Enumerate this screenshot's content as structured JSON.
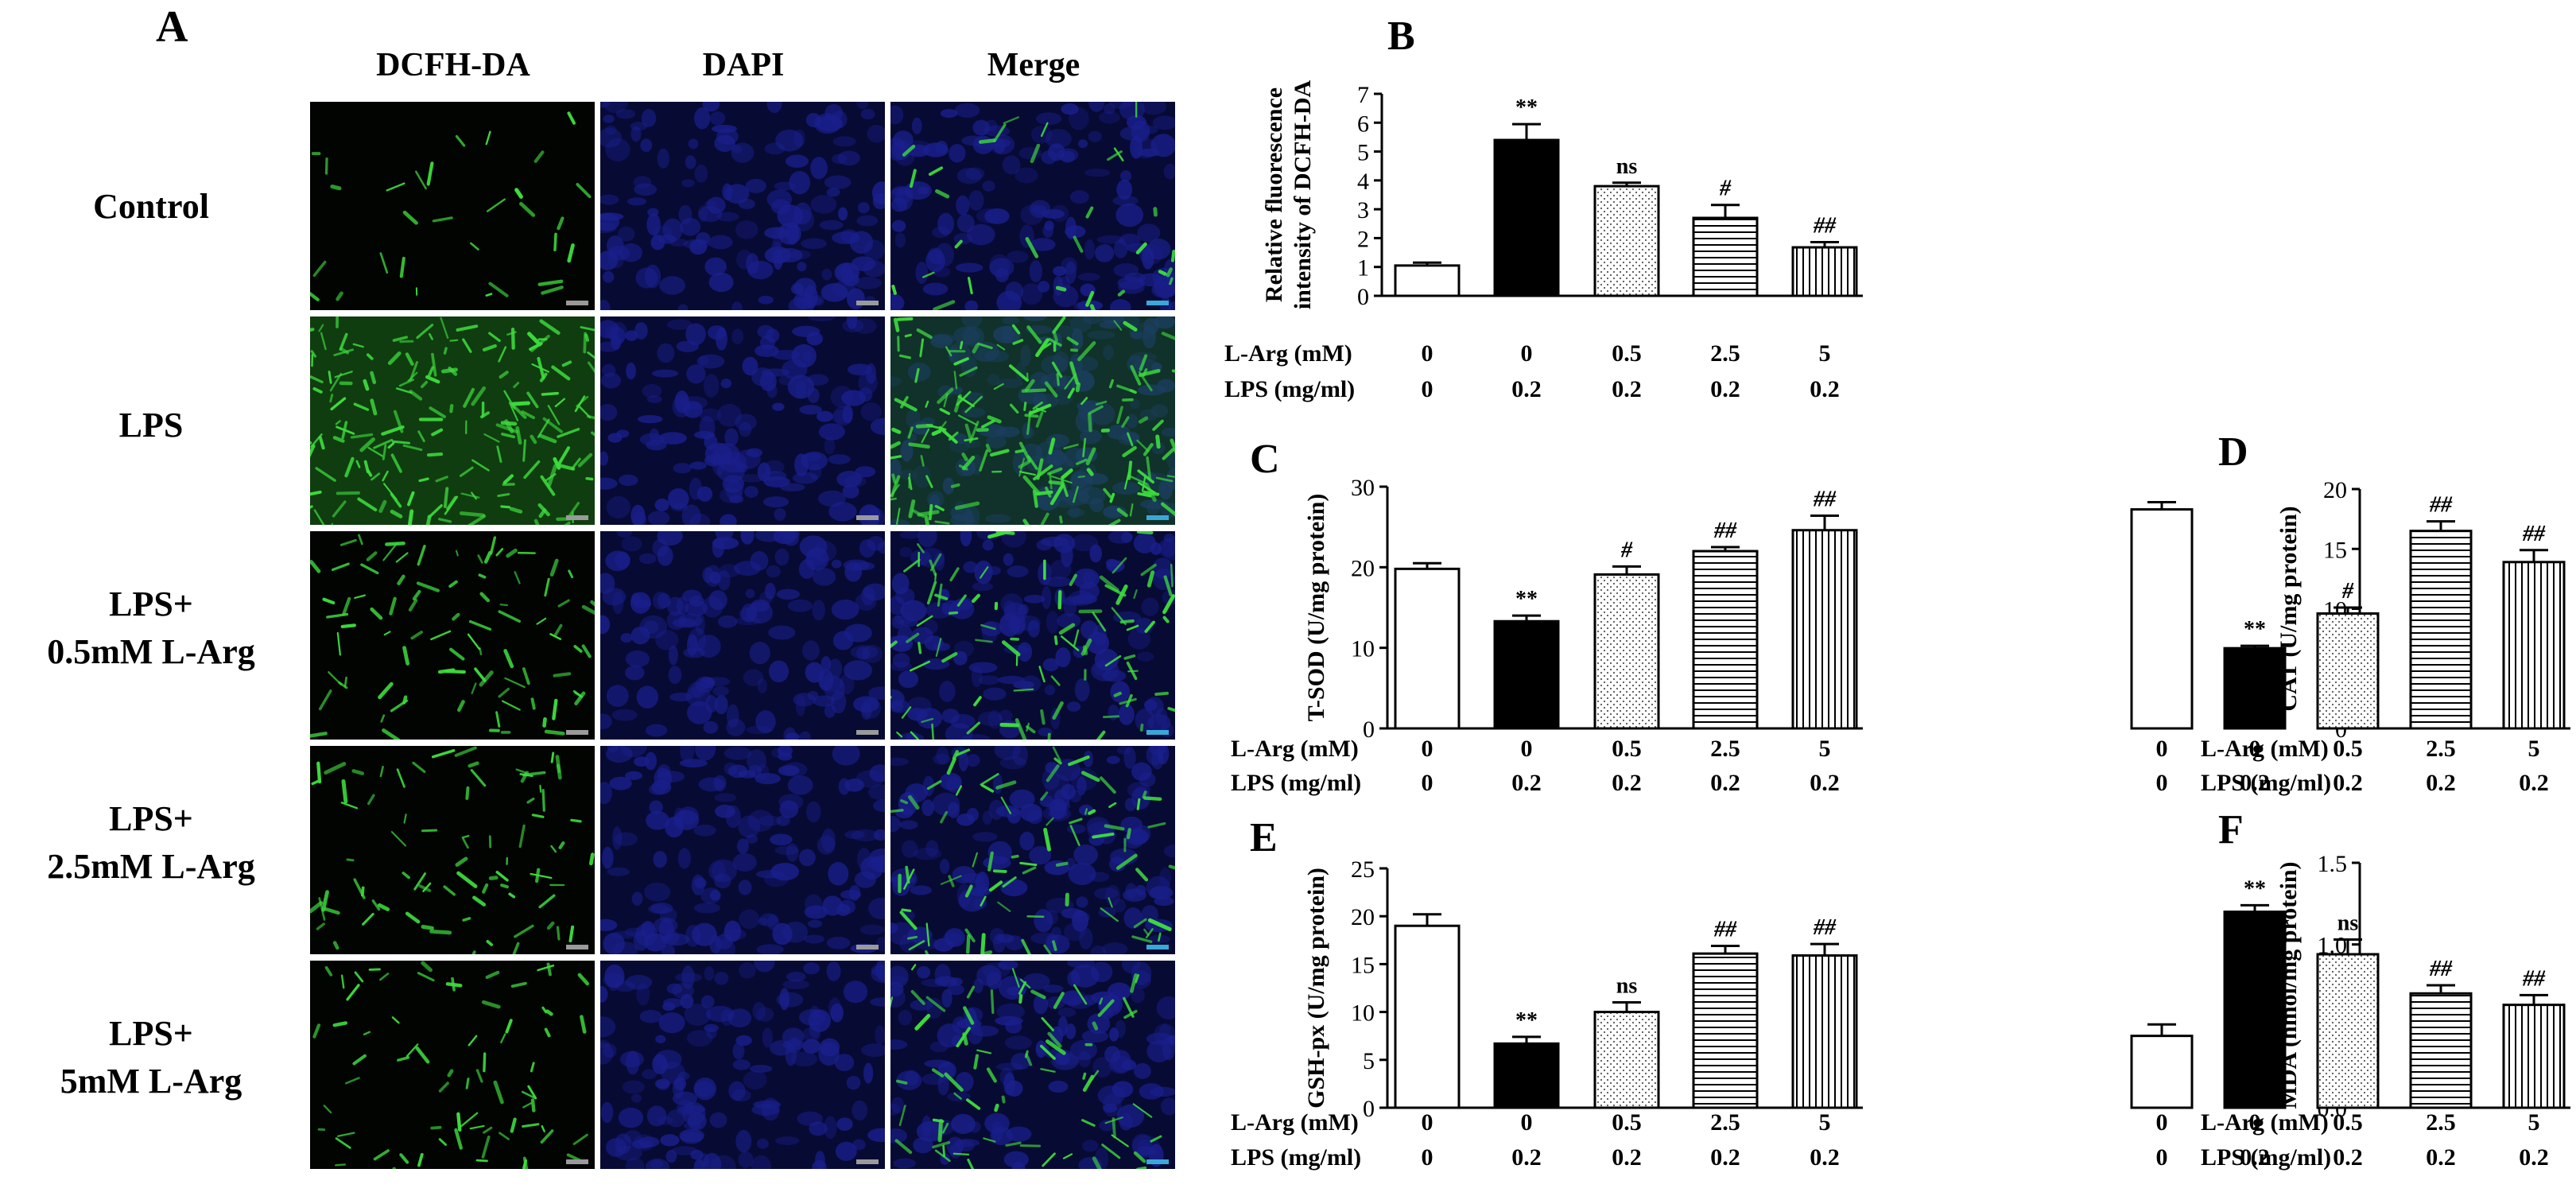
{
  "panel_a": {
    "letter": "A",
    "columns": [
      "DCFH-DA",
      "DAPI",
      "Merge"
    ],
    "rows": [
      [
        "Control"
      ],
      [
        "LPS"
      ],
      [
        "LPS+",
        "0.5mM L-Arg"
      ],
      [
        "LPS+",
        "2.5mM L-Arg"
      ],
      [
        "LPS+",
        "5mM L-Arg"
      ]
    ],
    "green_density": [
      0.12,
      1.0,
      0.45,
      0.4,
      0.35
    ],
    "colors": {
      "green": "#3ddc3d",
      "blue": "#1a1f8c",
      "background": "#000000"
    }
  },
  "chart_data": [
    {
      "panel": "B",
      "type": "bar",
      "ylabel": [
        "Relative fluorescence",
        "intensity of DCFH-DA"
      ],
      "ylim": [
        0,
        7
      ],
      "yticks": [
        0,
        1,
        2,
        3,
        4,
        5,
        6,
        7
      ],
      "values": [
        1.05,
        5.4,
        3.8,
        2.7,
        1.68
      ],
      "errors": [
        0.1,
        0.55,
        0.12,
        0.45,
        0.18
      ],
      "annotations": [
        "",
        "**",
        "ns",
        "#",
        "##"
      ],
      "row_labels": [
        "L-Arg (mM)",
        "LPS (mg/ml)"
      ],
      "rows": [
        [
          "0",
          "0",
          "0.5",
          "2.5",
          "5"
        ],
        [
          "0",
          "0.2",
          "0.2",
          "0.2",
          "0.2"
        ]
      ]
    },
    {
      "panel": "C",
      "type": "bar",
      "ylabel": [
        "T-SOD (U/mg protein)"
      ],
      "ylim": [
        0,
        30
      ],
      "yticks": [
        0,
        10,
        20,
        30
      ],
      "values": [
        19.8,
        13.3,
        19.1,
        22.0,
        24.6
      ],
      "errors": [
        0.7,
        0.7,
        1.0,
        0.5,
        1.8
      ],
      "annotations": [
        "",
        "**",
        "#",
        "##",
        "##"
      ],
      "row_labels": [
        "L-Arg (mM)",
        "LPS (mg/ml)"
      ],
      "rows": [
        [
          "0",
          "0",
          "0.5",
          "2.5",
          "5"
        ],
        [
          "0",
          "0.2",
          "0.2",
          "0.2",
          "0.2"
        ]
      ]
    },
    {
      "panel": "D",
      "type": "bar",
      "ylabel": [
        "CAT (U/mg protein)"
      ],
      "ylim": [
        0,
        20
      ],
      "yticks": [
        0,
        5,
        10,
        15,
        20
      ],
      "values": [
        18.3,
        6.7,
        9.6,
        16.5,
        13.9
      ],
      "errors": [
        0.6,
        0.2,
        0.5,
        0.8,
        1.0
      ],
      "annotations": [
        "",
        "**",
        "#",
        "##",
        "##"
      ],
      "row_labels": [
        "L-Arg (mM)",
        "LPS (mg/ml)"
      ],
      "rows": [
        [
          "0",
          "0",
          "0.5",
          "2.5",
          "5"
        ],
        [
          "0",
          "0.2",
          "0.2",
          "0.2",
          "0.2"
        ]
      ]
    },
    {
      "panel": "E",
      "type": "bar",
      "ylabel": [
        "GSH-px (U/mg protein)"
      ],
      "ylim": [
        0,
        25
      ],
      "yticks": [
        0,
        5,
        10,
        15,
        20,
        25
      ],
      "values": [
        19.0,
        6.7,
        10.0,
        16.1,
        15.9
      ],
      "errors": [
        1.2,
        0.7,
        1.0,
        0.8,
        1.2
      ],
      "annotations": [
        "",
        "**",
        "ns",
        "##",
        "##"
      ],
      "row_labels": [
        "L-Arg (mM)",
        "LPS (mg/ml)"
      ],
      "rows": [
        [
          "0",
          "0",
          "0.5",
          "2.5",
          "5"
        ],
        [
          "0",
          "0.2",
          "0.2",
          "0.2",
          "0.2"
        ]
      ]
    },
    {
      "panel": "F",
      "type": "bar",
      "ylabel": [
        "MDA (nmol/mg protein)"
      ],
      "ylim": [
        0,
        1.5
      ],
      "yticks": [
        "0.0",
        "0.5",
        "1.0",
        "1.5"
      ],
      "values": [
        0.44,
        1.2,
        0.94,
        0.7,
        0.63
      ],
      "errors": [
        0.07,
        0.04,
        0.09,
        0.05,
        0.06
      ],
      "annotations": [
        "",
        "**",
        "ns",
        "##",
        "##"
      ],
      "row_labels": [
        "L-Arg (mM)",
        "LPS (mg/ml)"
      ],
      "rows": [
        [
          "0",
          "0",
          "0.5",
          "2.5",
          "5"
        ],
        [
          "0",
          "0.2",
          "0.2",
          "0.2",
          "0.2"
        ]
      ]
    }
  ]
}
